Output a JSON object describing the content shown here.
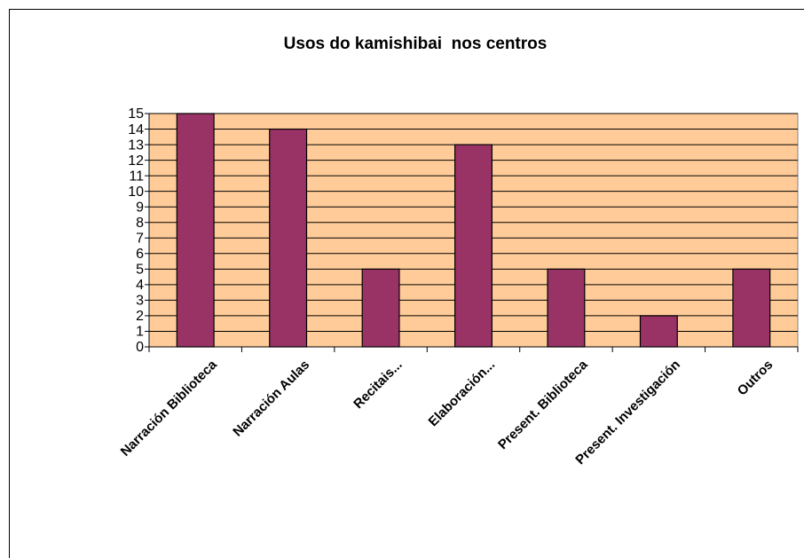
{
  "chart_data": {
    "type": "bar",
    "title": "Usos do kamishibai  nos centros",
    "categories": [
      "Narración Biblioteca",
      "Narración Aulas",
      "Recitais...",
      "Elaboración...",
      "Present. Biblioteca",
      "Present. Investigación",
      "Outros"
    ],
    "values": [
      15,
      14,
      5,
      13,
      5,
      2,
      5
    ],
    "color": "#993366",
    "background": "#ffcc99",
    "ylim": [
      0,
      15
    ],
    "yticks": [
      0,
      1,
      2,
      3,
      4,
      5,
      6,
      7,
      8,
      9,
      10,
      11,
      12,
      13,
      14,
      15
    ],
    "grid": true
  }
}
